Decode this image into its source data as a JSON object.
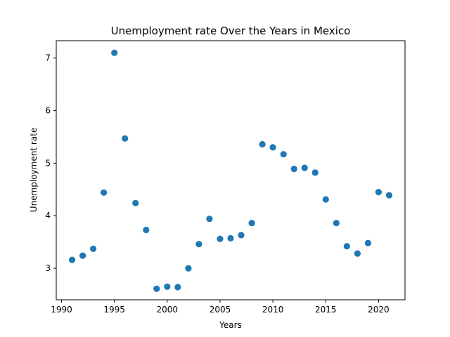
{
  "chart_data": {
    "type": "scatter",
    "title": "Unemployment rate Over the Years in Mexico",
    "xlabel": "Years",
    "ylabel": "Unemployment rate",
    "xlim": [
      1989.5,
      2022.5
    ],
    "ylim": [
      2.4,
      7.33
    ],
    "xticks": [
      1990,
      1995,
      2000,
      2005,
      2010,
      2015,
      2020
    ],
    "yticks": [
      3,
      4,
      5,
      6,
      7
    ],
    "grid": false,
    "marker_color": "#1f77b4",
    "x": [
      1991,
      1992,
      1993,
      1994,
      1995,
      1996,
      1997,
      1998,
      1999,
      2000,
      2001,
      2002,
      2003,
      2004,
      2005,
      2006,
      2007,
      2008,
      2009,
      2010,
      2011,
      2012,
      2013,
      2014,
      2015,
      2016,
      2017,
      2018,
      2019,
      2020,
      2021
    ],
    "y": [
      3.16,
      3.24,
      3.37,
      4.44,
      7.1,
      5.47,
      4.24,
      3.73,
      2.61,
      2.65,
      2.64,
      3.0,
      3.46,
      3.94,
      3.56,
      3.57,
      3.63,
      3.86,
      5.36,
      5.3,
      5.17,
      4.89,
      4.91,
      4.82,
      4.31,
      3.86,
      3.42,
      3.28,
      3.48,
      4.45,
      4.39
    ]
  }
}
